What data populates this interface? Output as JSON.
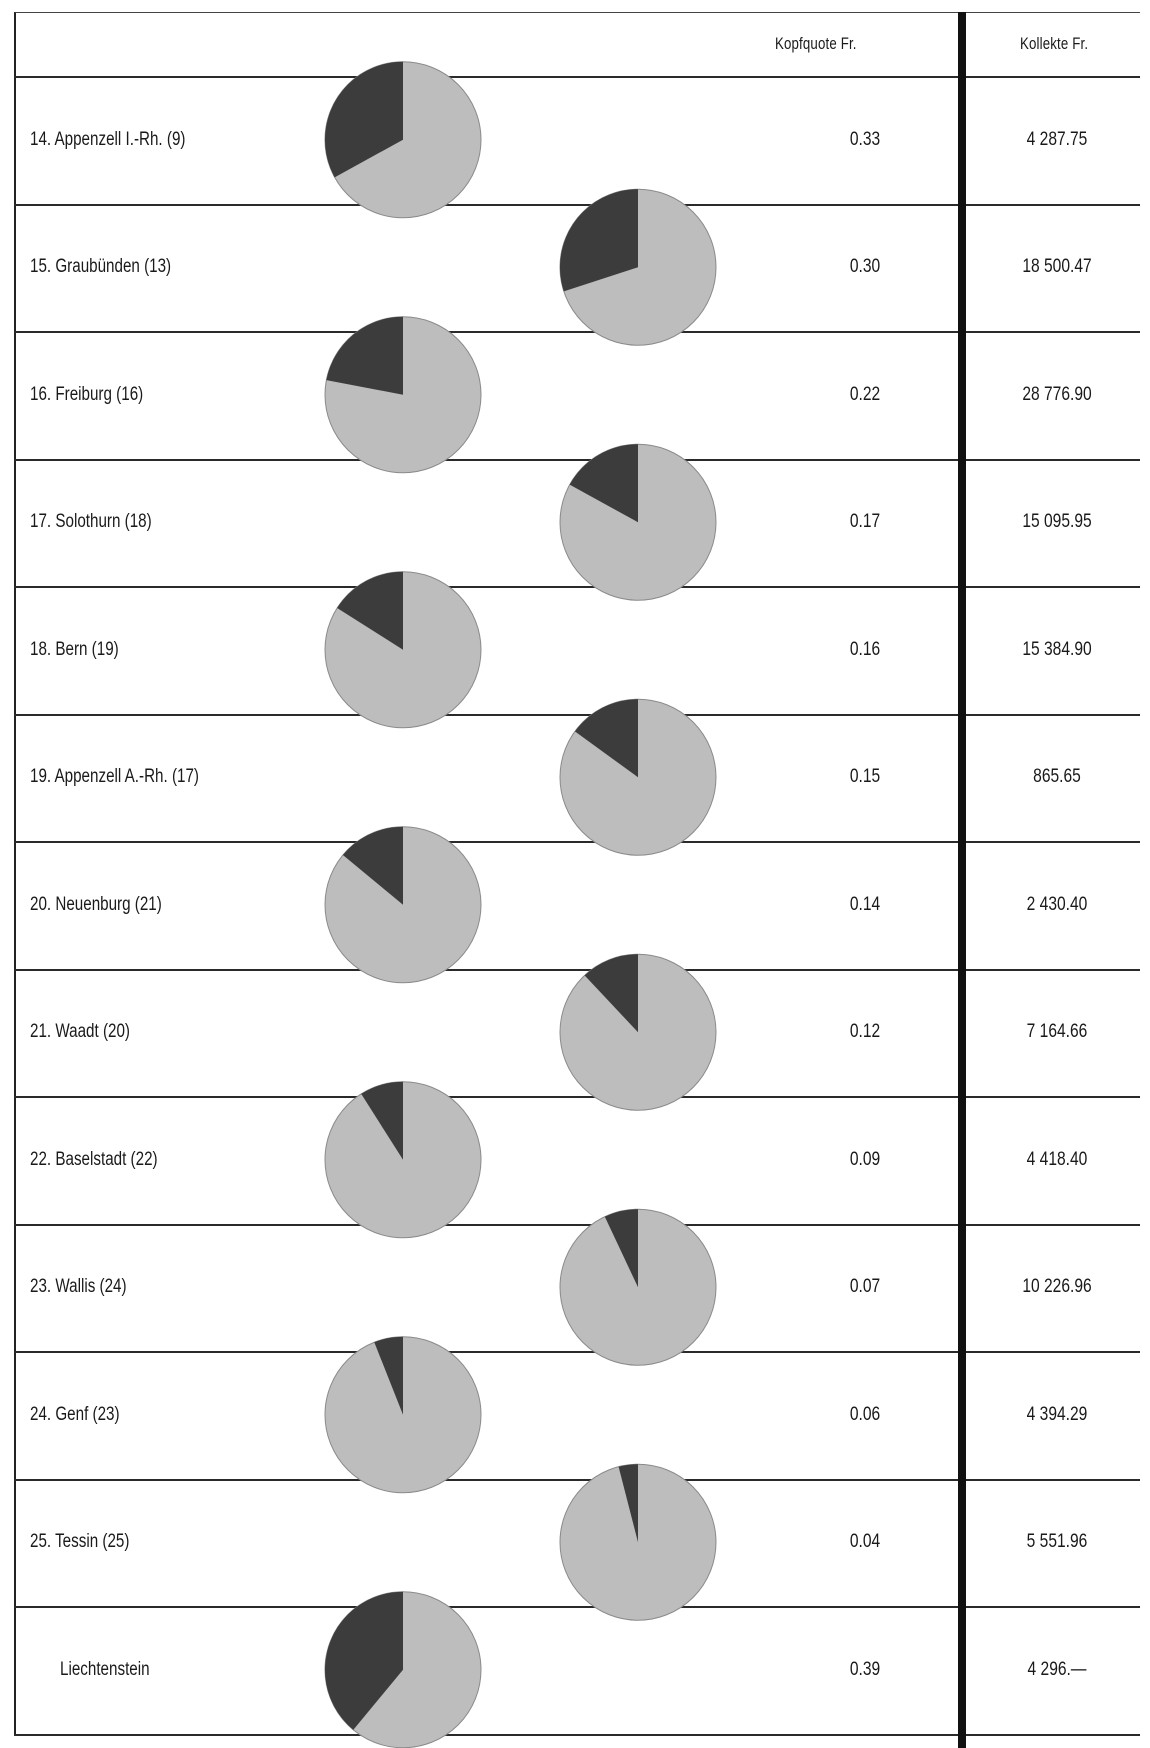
{
  "header": {
    "kopfquote_label": "Kopfquote Fr.",
    "kollekte_label": "Kollekte Fr."
  },
  "chart_data": {
    "type": "table",
    "columns": [
      "",
      "Kopfquote Fr.",
      "Kollekte Fr."
    ],
    "rows": [
      {
        "name": "14. Appenzell I.-Rh. (9)",
        "kopfquote": "0.33",
        "kopfquote_value": 0.33,
        "kollekte": "4 287.75"
      },
      {
        "name": "15. Graubünden (13)",
        "kopfquote": "0.30",
        "kopfquote_value": 0.3,
        "kollekte": "18 500.47"
      },
      {
        "name": "16. Freiburg (16)",
        "kopfquote": "0.22",
        "kopfquote_value": 0.22,
        "kollekte": "28 776.90"
      },
      {
        "name": "17. Solothurn (18)",
        "kopfquote": "0.17",
        "kopfquote_value": 0.17,
        "kollekte": "15 095.95"
      },
      {
        "name": "18. Bern (19)",
        "kopfquote": "0.16",
        "kopfquote_value": 0.16,
        "kollekte": "15 384.90"
      },
      {
        "name": "19. Appenzell A.-Rh. (17)",
        "kopfquote": "0.15",
        "kopfquote_value": 0.15,
        "kollekte": "865.65"
      },
      {
        "name": "20. Neuenburg (21)",
        "kopfquote": "0.14",
        "kopfquote_value": 0.14,
        "kollekte": "2 430.40"
      },
      {
        "name": "21. Waadt (20)",
        "kopfquote": "0.12",
        "kopfquote_value": 0.12,
        "kollekte": "7 164.66"
      },
      {
        "name": "22. Baselstadt (22)",
        "kopfquote": "0.09",
        "kopfquote_value": 0.09,
        "kollekte": "4 418.40"
      },
      {
        "name": "23. Wallis (24)",
        "kopfquote": "0.07",
        "kopfquote_value": 0.07,
        "kollekte": "10 226.96"
      },
      {
        "name": "24. Genf (23)",
        "kopfquote": "0.06",
        "kopfquote_value": 0.06,
        "kollekte": "4 394.29"
      },
      {
        "name": "25. Tessin (25)",
        "kopfquote": "0.04",
        "kopfquote_value": 0.04,
        "kollekte": "5 551.96"
      },
      {
        "name": "Liechtenstein",
        "kopfquote": "0.39",
        "kopfquote_value": 0.39,
        "kollekte": "4 296.—"
      }
    ],
    "pie_full_scale": 1.0,
    "colors": {
      "slice": "#3c3c3c",
      "rest": "#bdbdbd",
      "rule": "#2a2a2a",
      "bar": "#111111"
    }
  }
}
